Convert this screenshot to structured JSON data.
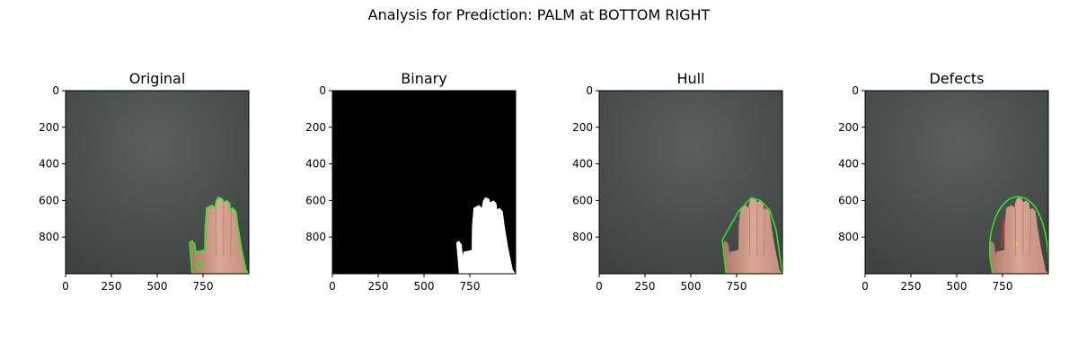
{
  "figure_title": "Analysis for Prediction: PALM at BOTTOM RIGHT",
  "colors": {
    "background": "#ffffff",
    "board": "#4e5352",
    "contour": "#22ee22",
    "mask": "#ffffff",
    "mask_bg": "#000000",
    "skin": "#cf9d88"
  },
  "chart_data": [
    {
      "type": "image",
      "title": "Original",
      "content": "photo-with-contour",
      "xlim": [
        0,
        1000
      ],
      "ylim": [
        1000,
        0
      ],
      "xticks": [
        0,
        250,
        500,
        750
      ],
      "yticks": [
        0,
        200,
        400,
        600,
        800
      ]
    },
    {
      "type": "image",
      "title": "Binary",
      "content": "binary-mask",
      "xlim": [
        0,
        1000
      ],
      "ylim": [
        1000,
        0
      ],
      "xticks": [
        0,
        250,
        500,
        750
      ],
      "yticks": [
        0,
        200,
        400,
        600,
        800
      ]
    },
    {
      "type": "image",
      "title": "Hull",
      "content": "photo-with-hull",
      "xlim": [
        0,
        1000
      ],
      "ylim": [
        1000,
        0
      ],
      "xticks": [
        0,
        250,
        500,
        750
      ],
      "yticks": [
        0,
        200,
        400,
        600,
        800
      ]
    },
    {
      "type": "image",
      "title": "Defects",
      "content": "photo-with-defects",
      "xlim": [
        0,
        1000
      ],
      "ylim": [
        1000,
        0
      ],
      "xticks": [
        0,
        250,
        500,
        750
      ],
      "yticks": [
        0,
        200,
        400,
        600,
        800
      ]
    }
  ]
}
